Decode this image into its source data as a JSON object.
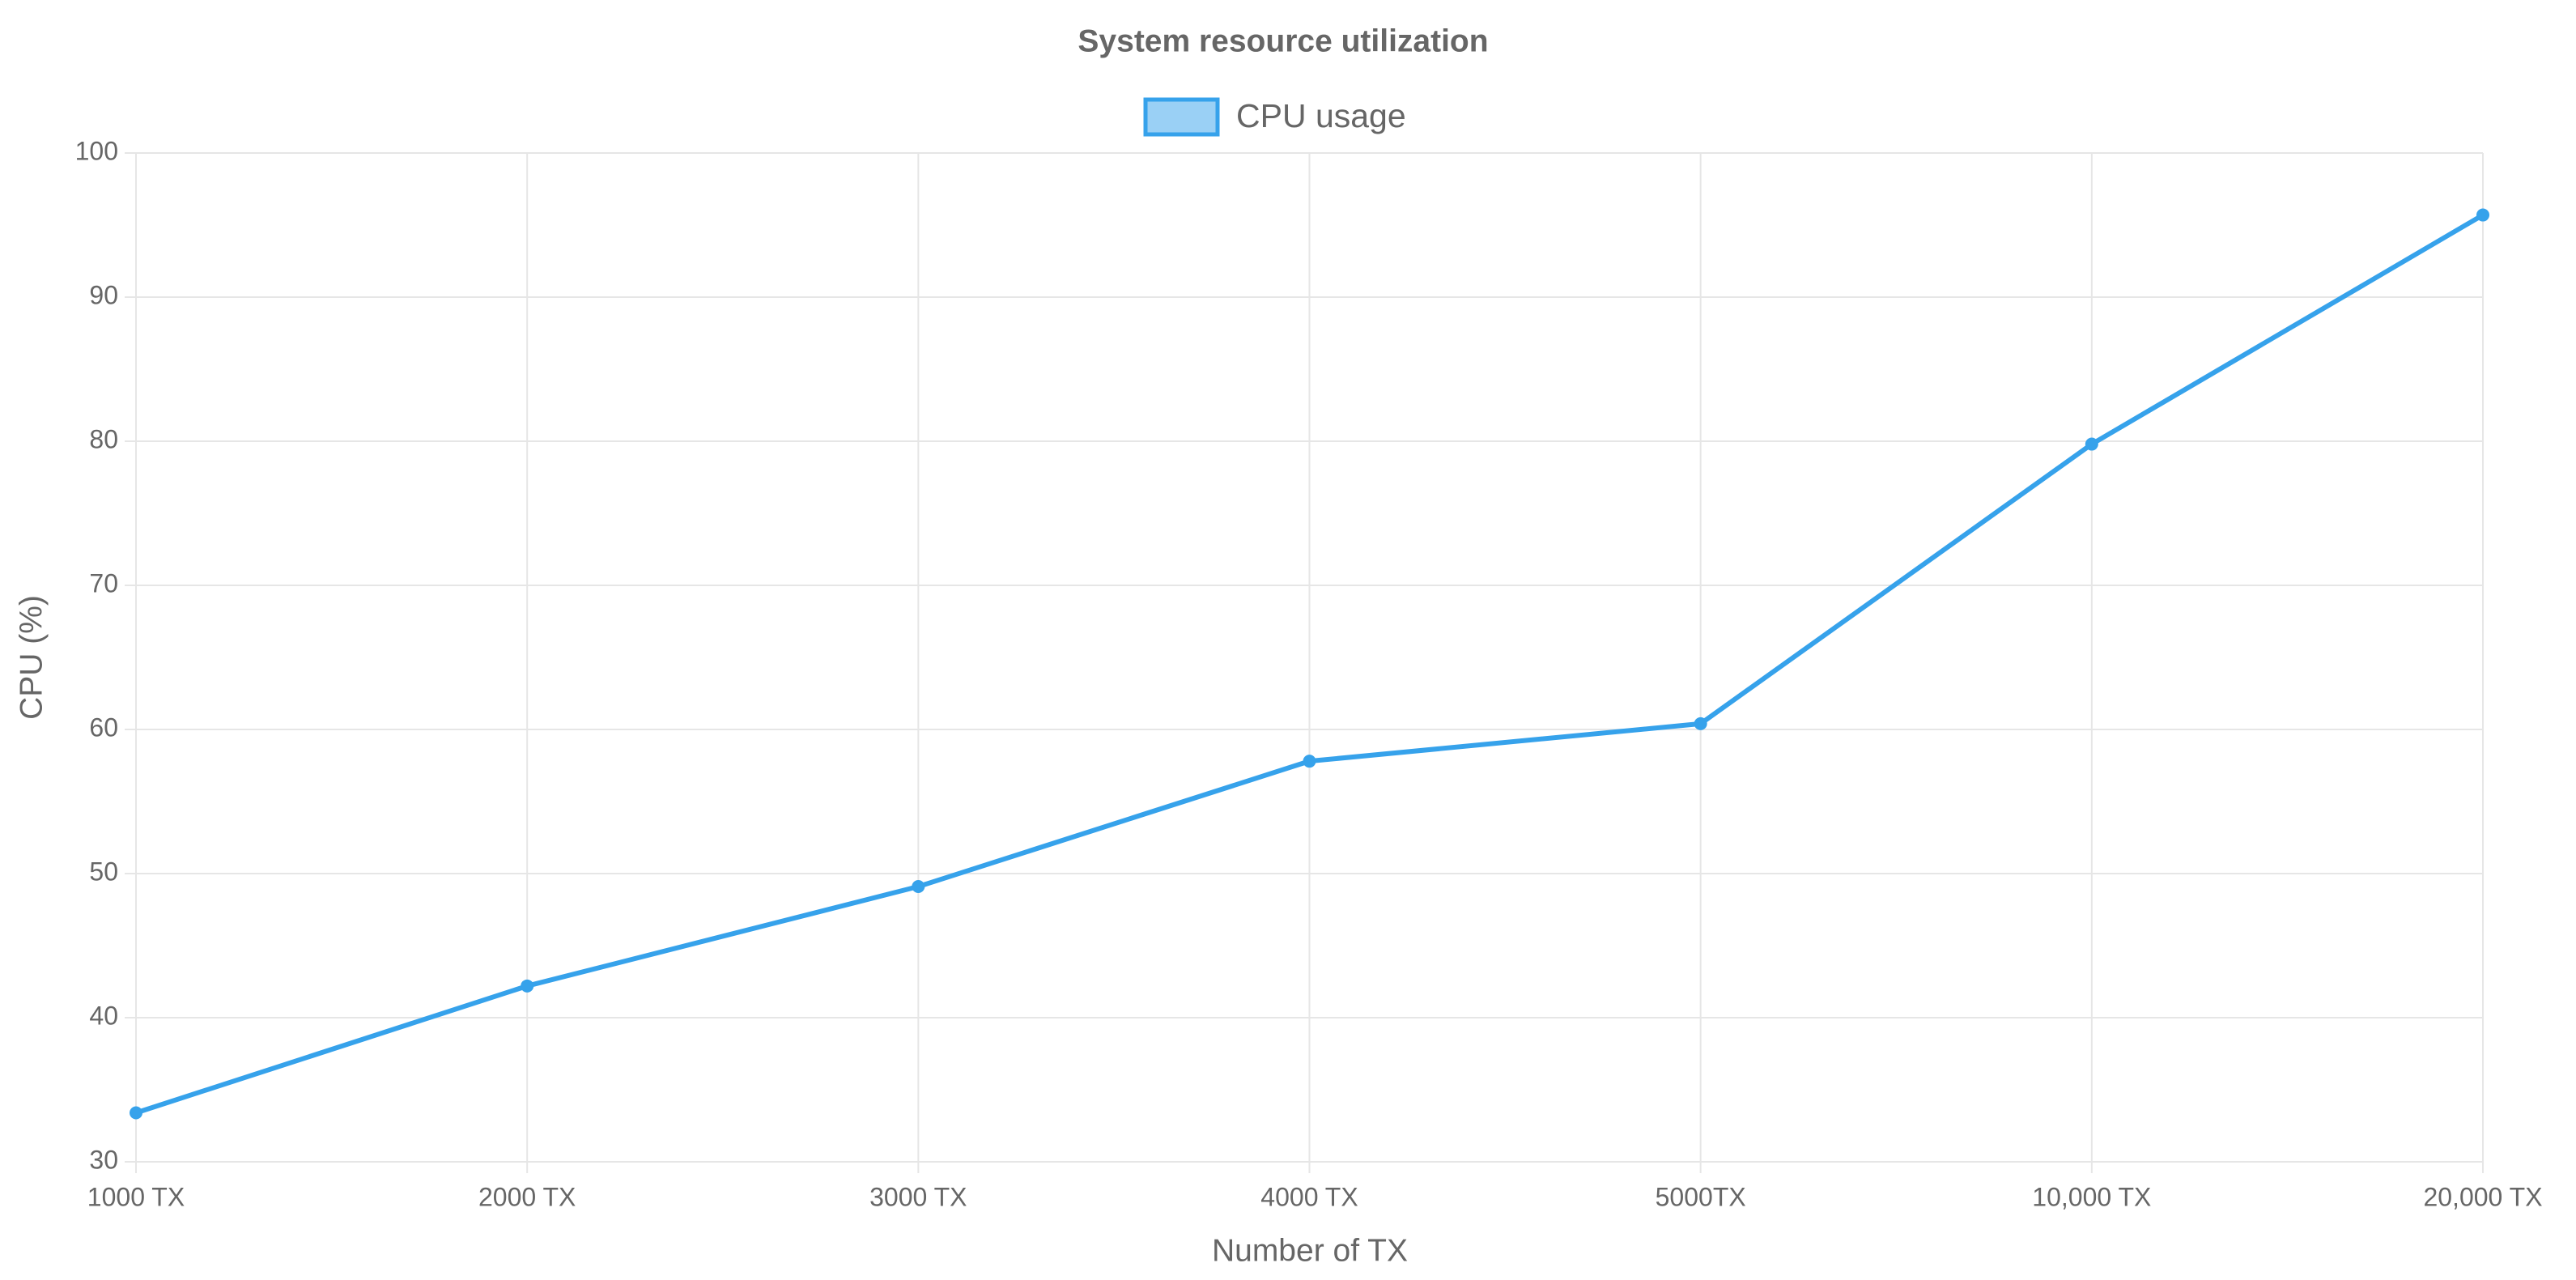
{
  "chart_data": {
    "type": "line",
    "title": "System resource utilization",
    "x_label": "Number of TX",
    "y_label": "CPU (%)",
    "categories": [
      "1000 TX",
      "2000 TX",
      "3000 TX",
      "4000 TX",
      "5000TX",
      "10,000 TX",
      "20,000 TX"
    ],
    "series": [
      {
        "name": "CPU usage",
        "color": "#36a2eb",
        "values": [
          33.4,
          42.2,
          49.1,
          57.8,
          60.4,
          79.8,
          95.7
        ]
      }
    ],
    "ylim": [
      30,
      100
    ],
    "yticks": [
      30,
      40,
      50,
      60,
      70,
      80,
      90,
      100
    ],
    "grid": true,
    "legend": "top"
  }
}
